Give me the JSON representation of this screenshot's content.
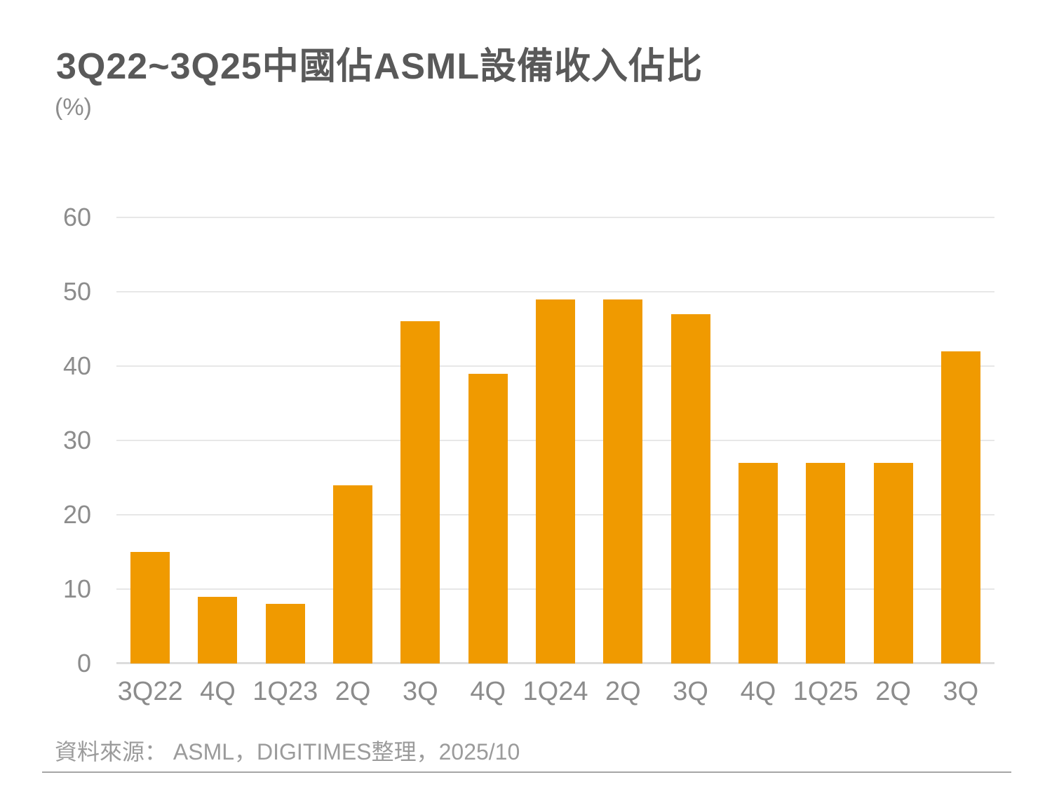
{
  "title": "3Q22~3Q25中國佔ASML設備收入佔比",
  "unit_label": "(%)",
  "source_note": "資料來源： ASML，DIGITIMES整理，2025/10",
  "colors": {
    "bar": "#F09A00",
    "title_text": "#595959",
    "unit_text": "#8C8C8C",
    "axis_text": "#8C8C8C",
    "source_text": "#9B9B9B",
    "gridline": "#E7E7E7",
    "baseline": "#DCDCDC",
    "footer_rule": "#A6A6A6"
  },
  "chart_data": {
    "type": "bar",
    "title": "3Q22~3Q25中國佔ASML設備收入佔比",
    "xlabel": "",
    "ylabel": "(%)",
    "categories": [
      "3Q22",
      "4Q",
      "1Q23",
      "2Q",
      "3Q",
      "4Q",
      "1Q24",
      "2Q",
      "3Q",
      "4Q",
      "1Q25",
      "2Q",
      "3Q"
    ],
    "values": [
      15,
      9,
      8,
      24,
      46,
      39,
      49,
      49,
      47,
      27,
      27,
      27,
      42
    ],
    "ylim": [
      0,
      60
    ],
    "yticks": [
      0,
      10,
      20,
      30,
      40,
      50,
      60
    ],
    "grid": true,
    "legend_position": "none",
    "bar_color": "#F09A00"
  }
}
